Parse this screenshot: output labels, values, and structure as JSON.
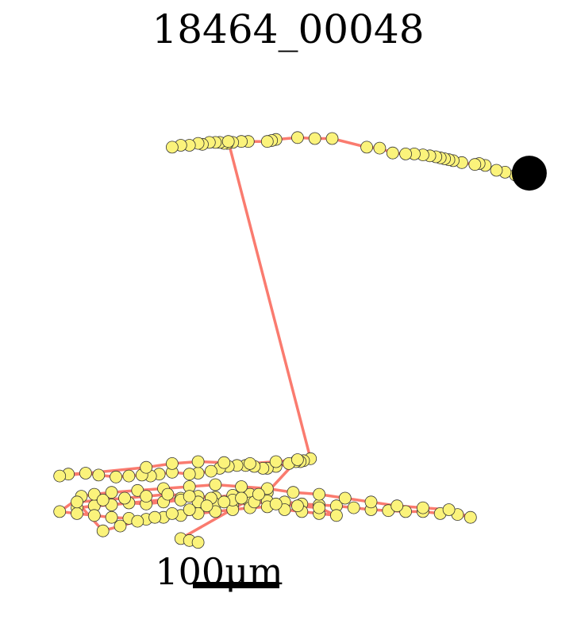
{
  "title": "18464_00048",
  "scale_bar": {
    "label": "100μm",
    "length_um": 100
  },
  "colors": {
    "path": "#fa7b6f",
    "point_fill": "#fbf37b",
    "point_edge": "#333333",
    "end_marker": "#000000",
    "scale_bar": "#000000",
    "background": "#ffffff"
  },
  "chart_data": {
    "type": "scatter",
    "title": "18464_00048",
    "units": "μm",
    "xlim": [
      -125,
      455
    ],
    "ylim": [
      -30,
      420
    ],
    "grid": false,
    "axes_visible": false,
    "end_marker": {
      "x": 443,
      "y": 372
    },
    "track": [
      [
        443,
        372
      ],
      [
        427,
        370
      ],
      [
        415,
        373
      ],
      [
        405,
        375
      ],
      [
        392,
        380
      ],
      [
        385,
        382
      ],
      [
        380,
        381
      ],
      [
        365,
        383
      ],
      [
        355,
        385
      ],
      [
        350,
        386
      ],
      [
        345,
        387
      ],
      [
        340,
        388
      ],
      [
        335,
        389
      ],
      [
        328,
        390
      ],
      [
        320,
        391
      ],
      [
        310,
        392
      ],
      [
        300,
        392
      ],
      [
        285,
        393
      ],
      [
        270,
        398
      ],
      [
        255,
        399
      ],
      [
        215,
        408
      ],
      [
        195,
        408
      ],
      [
        175,
        409
      ],
      [
        150,
        407
      ],
      [
        145,
        406
      ],
      [
        140,
        405
      ],
      [
        118,
        405
      ],
      [
        110,
        405
      ],
      [
        100,
        404
      ],
      [
        94,
        403
      ],
      [
        90,
        403
      ],
      [
        85,
        404
      ],
      [
        80,
        404
      ],
      [
        73,
        404
      ],
      [
        65,
        402
      ],
      [
        60,
        403
      ],
      [
        50,
        401
      ],
      [
        40,
        401
      ],
      [
        30,
        399
      ],
      [
        95,
        405
      ],
      [
        190,
        75
      ],
      [
        182,
        73
      ],
      [
        178,
        72
      ],
      [
        173,
        72
      ],
      [
        165,
        70
      ],
      [
        150,
        67
      ],
      [
        140,
        65
      ],
      [
        135,
        65
      ],
      [
        125,
        67
      ],
      [
        115,
        68
      ],
      [
        105,
        68
      ],
      [
        95,
        67
      ],
      [
        85,
        65
      ],
      [
        75,
        62
      ],
      [
        60,
        60
      ],
      [
        50,
        59
      ],
      [
        30,
        61
      ],
      [
        15,
        59
      ],
      [
        5,
        57
      ],
      [
        -5,
        58
      ],
      [
        -20,
        57
      ],
      [
        -35,
        56
      ],
      [
        -55,
        58
      ],
      [
        -70,
        60
      ],
      [
        -90,
        59
      ],
      [
        -100,
        57
      ],
      [
        0,
        66
      ],
      [
        30,
        70
      ],
      [
        60,
        72
      ],
      [
        90,
        71
      ],
      [
        120,
        70
      ],
      [
        150,
        72
      ],
      [
        175,
        74
      ],
      [
        140,
        40
      ],
      [
        120,
        38
      ],
      [
        100,
        37
      ],
      [
        80,
        35
      ],
      [
        60,
        36
      ],
      [
        40,
        34
      ],
      [
        -80,
        24
      ],
      [
        -60,
        26
      ],
      [
        -40,
        27
      ],
      [
        -20,
        29
      ],
      [
        0,
        28
      ],
      [
        20,
        30
      ],
      [
        40,
        32
      ],
      [
        60,
        30
      ],
      [
        80,
        28
      ],
      [
        100,
        27
      ],
      [
        120,
        29
      ],
      [
        140,
        31
      ],
      [
        160,
        30
      ],
      [
        180,
        28
      ],
      [
        200,
        27
      ],
      [
        220,
        26
      ],
      [
        240,
        24
      ],
      [
        260,
        22
      ],
      [
        280,
        21
      ],
      [
        300,
        20
      ],
      [
        320,
        20
      ],
      [
        340,
        18
      ],
      [
        360,
        17
      ],
      [
        375,
        14
      ],
      [
        350,
        22
      ],
      [
        320,
        24
      ],
      [
        290,
        26
      ],
      [
        260,
        30
      ],
      [
        230,
        34
      ],
      [
        200,
        38
      ],
      [
        170,
        40
      ],
      [
        140,
        44
      ],
      [
        110,
        46
      ],
      [
        80,
        48
      ],
      [
        50,
        46
      ],
      [
        20,
        44
      ],
      [
        -10,
        42
      ],
      [
        -40,
        40
      ],
      [
        -60,
        38
      ],
      [
        -75,
        36
      ],
      [
        -100,
        20
      ],
      [
        -80,
        18
      ],
      [
        -60,
        16
      ],
      [
        -40,
        14
      ],
      [
        -20,
        13
      ],
      [
        0,
        12
      ],
      [
        20,
        14
      ],
      [
        40,
        16
      ],
      [
        60,
        18
      ],
      [
        80,
        20
      ],
      [
        100,
        22
      ],
      [
        120,
        24
      ],
      [
        140,
        25
      ],
      [
        160,
        22
      ],
      [
        180,
        20
      ],
      [
        200,
        18
      ],
      [
        220,
        16
      ],
      [
        200,
        24
      ],
      [
        175,
        26
      ],
      [
        150,
        28
      ],
      [
        125,
        30
      ],
      [
        100,
        32
      ],
      [
        75,
        34
      ],
      [
        50,
        36
      ],
      [
        25,
        38
      ],
      [
        0,
        36
      ],
      [
        -25,
        34
      ],
      [
        -50,
        32
      ],
      [
        -80,
        30
      ],
      [
        -50,
        0
      ],
      [
        -30,
        5
      ],
      [
        -10,
        10
      ],
      [
        10,
        14
      ],
      [
        30,
        18
      ],
      [
        50,
        22
      ],
      [
        70,
        26
      ],
      [
        90,
        30
      ],
      [
        110,
        34
      ],
      [
        130,
        38
      ],
      [
        40,
        -8
      ],
      [
        50,
        -10
      ],
      [
        60,
        -12
      ]
    ]
  }
}
